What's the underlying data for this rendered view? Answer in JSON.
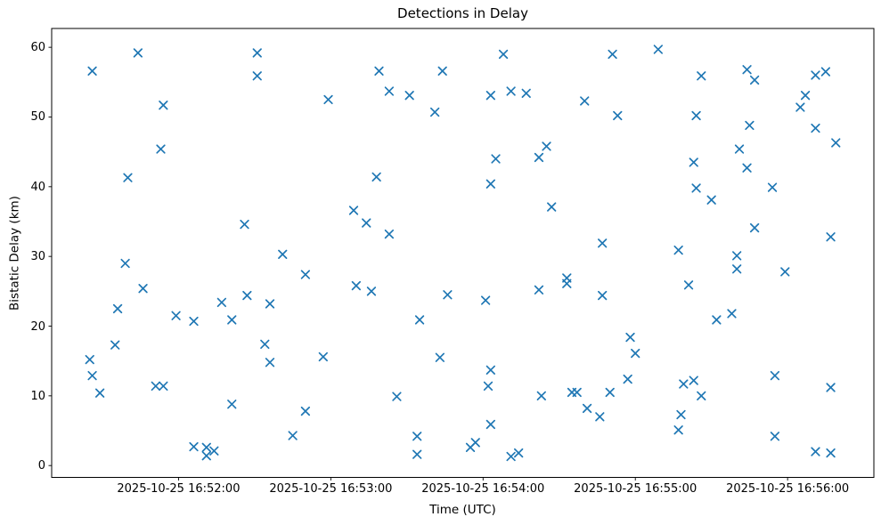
{
  "chart_data": {
    "type": "scatter",
    "title": "Detections in Delay",
    "xlabel": "Time (UTC)",
    "ylabel": "Bistatic Delay (km)",
    "date": "2025-10-25",
    "marker": {
      "shape": "x",
      "color": "#1f77b4"
    },
    "axes": {
      "x_tick_labels": [
        "2025-10-25 16:52:00",
        "2025-10-25 16:53:00",
        "2025-10-25 16:54:00",
        "2025-10-25 16:55:00",
        "2025-10-25 16:56:00"
      ],
      "x_tick_times": [
        "16:52:00",
        "16:53:00",
        "16:54:00",
        "16:55:00",
        "16:56:00"
      ],
      "y_ticks": [
        0,
        10,
        20,
        30,
        40,
        50,
        60
      ],
      "xlim_times": [
        "16:51:10",
        "16:56:34"
      ],
      "ylim": [
        -1.7,
        62.7
      ],
      "grid": false,
      "legend": null
    },
    "points": [
      [
        "16:51:25",
        15.2
      ],
      [
        "16:51:26",
        56.6
      ],
      [
        "16:51:26",
        12.9
      ],
      [
        "16:51:29",
        10.4
      ],
      [
        "16:51:35",
        17.3
      ],
      [
        "16:51:36",
        22.5
      ],
      [
        "16:51:39",
        29.0
      ],
      [
        "16:51:40",
        41.3
      ],
      [
        "16:51:44",
        59.2
      ],
      [
        "16:51:46",
        25.4
      ],
      [
        "16:51:51",
        11.4
      ],
      [
        "16:51:53",
        45.4
      ],
      [
        "16:51:54",
        51.7
      ],
      [
        "16:51:54",
        11.4
      ],
      [
        "16:51:59",
        21.5
      ],
      [
        "16:52:06",
        20.7
      ],
      [
        "16:52:06",
        2.7
      ],
      [
        "16:52:11",
        2.6
      ],
      [
        "16:52:11",
        1.4
      ],
      [
        "16:52:14",
        2.1
      ],
      [
        "16:52:17",
        23.4
      ],
      [
        "16:52:21",
        20.9
      ],
      [
        "16:52:21",
        8.8
      ],
      [
        "16:52:26",
        34.6
      ],
      [
        "16:52:27",
        24.4
      ],
      [
        "16:52:31",
        59.2
      ],
      [
        "16:52:31",
        55.9
      ],
      [
        "16:52:34",
        17.4
      ],
      [
        "16:52:36",
        23.2
      ],
      [
        "16:52:36",
        14.8
      ],
      [
        "16:52:41",
        30.3
      ],
      [
        "16:52:45",
        4.3
      ],
      [
        "16:52:50",
        27.4
      ],
      [
        "16:52:50",
        7.8
      ],
      [
        "16:52:57",
        15.6
      ],
      [
        "16:52:59",
        52.5
      ],
      [
        "16:53:09",
        36.6
      ],
      [
        "16:53:10",
        25.8
      ],
      [
        "16:53:14",
        34.8
      ],
      [
        "16:53:16",
        25.0
      ],
      [
        "16:53:18",
        41.4
      ],
      [
        "16:53:19",
        56.6
      ],
      [
        "16:53:23",
        53.7
      ],
      [
        "16:53:23",
        33.2
      ],
      [
        "16:53:26",
        9.9
      ],
      [
        "16:53:31",
        53.1
      ],
      [
        "16:53:34",
        4.2
      ],
      [
        "16:53:34",
        1.6
      ],
      [
        "16:53:35",
        20.9
      ],
      [
        "16:53:41",
        50.7
      ],
      [
        "16:53:43",
        15.5
      ],
      [
        "16:53:44",
        56.6
      ],
      [
        "16:53:46",
        24.5
      ],
      [
        "16:53:55",
        2.6
      ],
      [
        "16:53:57",
        3.3
      ],
      [
        "16:54:01",
        23.7
      ],
      [
        "16:54:02",
        11.4
      ],
      [
        "16:54:03",
        53.1
      ],
      [
        "16:54:03",
        40.4
      ],
      [
        "16:54:03",
        13.7
      ],
      [
        "16:54:03",
        5.9
      ],
      [
        "16:54:05",
        44.0
      ],
      [
        "16:54:08",
        59.0
      ],
      [
        "16:54:11",
        53.7
      ],
      [
        "16:54:11",
        1.3
      ],
      [
        "16:54:14",
        1.8
      ],
      [
        "16:54:17",
        53.4
      ],
      [
        "16:54:22",
        44.2
      ],
      [
        "16:54:22",
        25.2
      ],
      [
        "16:54:23",
        10.0
      ],
      [
        "16:54:25",
        45.8
      ],
      [
        "16:54:27",
        37.1
      ],
      [
        "16:54:33",
        26.9
      ],
      [
        "16:54:33",
        26.1
      ],
      [
        "16:54:35",
        10.5
      ],
      [
        "16:54:37",
        10.5
      ],
      [
        "16:54:40",
        52.3
      ],
      [
        "16:54:41",
        8.2
      ],
      [
        "16:54:46",
        7.0
      ],
      [
        "16:54:47",
        31.9
      ],
      [
        "16:54:47",
        24.4
      ],
      [
        "16:54:50",
        10.5
      ],
      [
        "16:54:51",
        59.0
      ],
      [
        "16:54:53",
        50.2
      ],
      [
        "16:54:57",
        12.4
      ],
      [
        "16:54:58",
        18.4
      ],
      [
        "16:55:00",
        16.1
      ],
      [
        "16:55:09",
        59.7
      ],
      [
        "16:55:17",
        30.9
      ],
      [
        "16:55:17",
        5.1
      ],
      [
        "16:55:18",
        7.3
      ],
      [
        "16:55:19",
        11.7
      ],
      [
        "16:55:21",
        25.9
      ],
      [
        "16:55:23",
        43.5
      ],
      [
        "16:55:23",
        12.2
      ],
      [
        "16:55:24",
        50.2
      ],
      [
        "16:55:24",
        39.8
      ],
      [
        "16:55:26",
        55.9
      ],
      [
        "16:55:26",
        10.0
      ],
      [
        "16:55:30",
        38.1
      ],
      [
        "16:55:32",
        20.9
      ],
      [
        "16:55:38",
        21.8
      ],
      [
        "16:55:40",
        30.1
      ],
      [
        "16:55:40",
        28.2
      ],
      [
        "16:55:41",
        45.4
      ],
      [
        "16:55:44",
        56.8
      ],
      [
        "16:55:44",
        42.7
      ],
      [
        "16:55:45",
        48.8
      ],
      [
        "16:55:47",
        55.3
      ],
      [
        "16:55:47",
        34.1
      ],
      [
        "16:55:54",
        39.9
      ],
      [
        "16:55:55",
        12.9
      ],
      [
        "16:55:55",
        4.2
      ],
      [
        "16:55:59",
        27.8
      ],
      [
        "16:56:05",
        51.4
      ],
      [
        "16:56:07",
        53.1
      ],
      [
        "16:56:11",
        56.0
      ],
      [
        "16:56:11",
        48.4
      ],
      [
        "16:56:11",
        2.0
      ],
      [
        "16:56:15",
        56.5
      ],
      [
        "16:56:17",
        32.8
      ],
      [
        "16:56:17",
        11.2
      ],
      [
        "16:56:17",
        1.8
      ],
      [
        "16:56:19",
        46.3
      ]
    ]
  }
}
